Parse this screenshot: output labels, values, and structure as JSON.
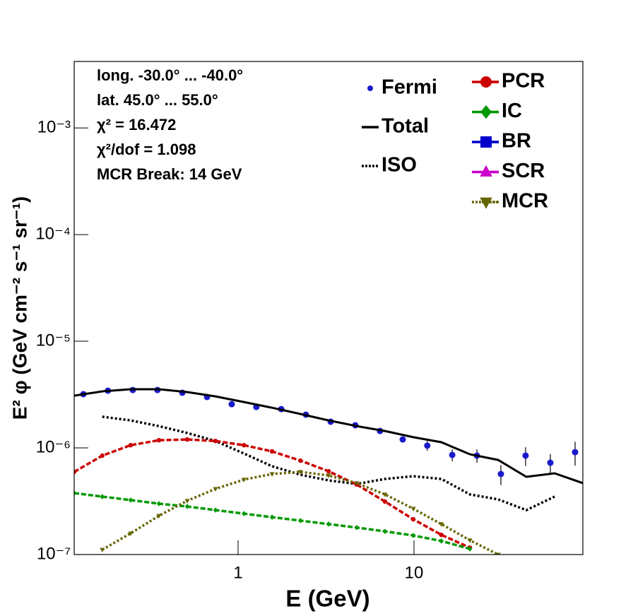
{
  "chart_data": {
    "type": "line",
    "xlabel": "E (GeV)",
    "ylabel": "E² φ (GeV cm⁻² s⁻¹ sr⁻¹)",
    "annotations": [
      "long. -30.0° ... -40.0°",
      "lat. 45.0° ... 55.0°",
      "χ² = 16.472",
      "χ²/dof = 1.098",
      "MCR Break: 14 GeV"
    ],
    "xlog": true,
    "ylog": true,
    "xlim": [
      0.117,
      91.2
    ],
    "ylim": [
      1e-07,
      0.0042
    ],
    "xticks": [
      1,
      10
    ],
    "yticks": [
      {
        "value": 1e-07,
        "label": "10⁻⁷"
      },
      {
        "value": 1e-06,
        "label": "10⁻⁶"
      },
      {
        "value": 1e-05,
        "label": "10⁻⁵"
      },
      {
        "value": 0.0001,
        "label": "10⁻⁴"
      },
      {
        "value": 0.001,
        "label": "10⁻³"
      }
    ],
    "x": [
      0.117,
      0.169,
      0.245,
      0.355,
      0.514,
      0.744,
      1.08,
      1.56,
      2.26,
      3.27,
      4.73,
      6.84,
      9.91,
      14.3,
      20.8,
      30.1,
      43.5,
      63.0,
      91.2
    ],
    "series": [
      {
        "name": "Fermi",
        "color": "#1a1acc",
        "marker": "circle",
        "line": "none",
        "x": [
          0.132,
          0.182,
          0.252,
          0.348,
          0.482,
          0.666,
          0.92,
          1.27,
          1.76,
          2.43,
          3.36,
          4.64,
          6.41,
          8.63,
          11.9,
          16.5,
          22.8,
          31.2,
          43.1,
          59.6,
          82.4
        ],
        "values": [
          3.19e-06,
          3.44e-06,
          3.49e-06,
          3.49e-06,
          3.29e-06,
          3e-06,
          2.57e-06,
          2.42e-06,
          2.31e-06,
          2.05e-06,
          1.76e-06,
          1.63e-06,
          1.44e-06,
          1.2e-06,
          1.05e-06,
          8.59e-07,
          8.46e-07,
          5.69e-07,
          8.46e-07,
          7.26e-07,
          9.12e-07
        ],
        "errors": [
          1e-07,
          1e-07,
          1e-07,
          1e-07,
          1e-07,
          9e-08,
          8e-08,
          8e-08,
          7e-08,
          7e-08,
          6e-08,
          6e-08,
          6e-08,
          8e-08,
          1.1e-07,
          1.1e-07,
          1.2e-07,
          1.2e-07,
          1.7e-07,
          1.5e-07,
          2.3e-07
        ]
      },
      {
        "name": "Total",
        "color": "#000000",
        "marker": "none",
        "line": "solid",
        "values": [
          3.09e-06,
          3.39e-06,
          3.55e-06,
          3.55e-06,
          3.34e-06,
          3.04e-06,
          2.69e-06,
          2.38e-06,
          2.08e-06,
          1.81e-06,
          1.6e-06,
          1.44e-06,
          1.26e-06,
          1.13e-06,
          8.71e-07,
          7.71e-07,
          5.35e-07,
          5.78e-07,
          4.67e-07
        ]
      },
      {
        "name": "ISO",
        "color": "#000000",
        "marker": "none",
        "line": "dotted",
        "values": [
          null,
          1.96e-06,
          1.81e-06,
          1.6e-06,
          1.38e-06,
          1.16e-06,
          8.85e-07,
          6.73e-07,
          5.6e-07,
          4.96e-07,
          4.59e-07,
          5.11e-07,
          5.43e-07,
          5.11e-07,
          3.66e-07,
          3.29e-07,
          2.61e-07,
          3.49e-07,
          null
        ]
      },
      {
        "name": "PCR",
        "color": "#cc0000",
        "marker": "circle",
        "line": "dashed",
        "values": [
          5.96e-07,
          8.46e-07,
          1.06e-06,
          1.18e-06,
          1.2e-06,
          1.16e-06,
          1.06e-06,
          9.27e-07,
          7.6e-07,
          6.04e-07,
          4.53e-07,
          3.14e-07,
          2.14e-07,
          1.53e-07,
          1.16e-07,
          null,
          null,
          null,
          null
        ]
      },
      {
        "name": "IC",
        "color": "#009900",
        "marker": "diamond",
        "line": "dashed",
        "values": [
          3.77e-07,
          3.49e-07,
          3.24e-07,
          3e-07,
          2.82e-07,
          2.61e-07,
          2.42e-07,
          2.24e-07,
          2.08e-07,
          1.93e-07,
          1.79e-07,
          1.65e-07,
          1.51e-07,
          1.34e-07,
          1.13e-07,
          null,
          null,
          null,
          null
        ]
      },
      {
        "name": "BR",
        "color": "#0000cc",
        "marker": "square",
        "line": "dashed",
        "values": [
          null,
          null,
          null,
          null,
          null,
          null,
          null,
          null,
          null,
          null,
          null,
          null,
          null,
          null,
          null,
          null,
          null,
          null,
          null
        ]
      },
      {
        "name": "SCR",
        "color": "#cc00cc",
        "marker": "triangle-up",
        "line": "dashed",
        "values": [
          null,
          null,
          null,
          null,
          null,
          null,
          null,
          null,
          null,
          null,
          null,
          null,
          null,
          null,
          null,
          null,
          null,
          null,
          null
        ]
      },
      {
        "name": "MCR",
        "color": "#666600",
        "marker": "triangle-down",
        "line": "dotted",
        "values": [
          null,
          1.11e-07,
          1.58e-07,
          2.31e-07,
          3.19e-07,
          4.13e-07,
          5.04e-07,
          5.69e-07,
          5.96e-07,
          5.52e-07,
          4.67e-07,
          3.66e-07,
          2.69e-07,
          1.93e-07,
          1.36e-07,
          1e-07,
          null,
          null,
          null
        ]
      }
    ]
  }
}
